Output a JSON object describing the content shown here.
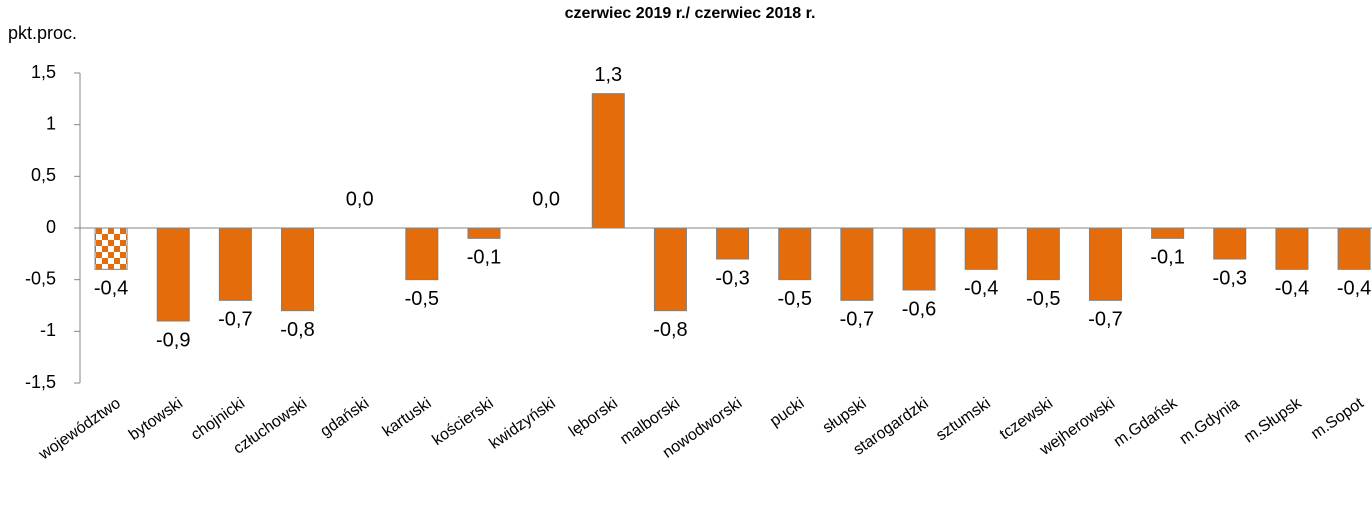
{
  "chart_data": {
    "type": "bar",
    "title": "czerwiec 2019 r./ czerwiec 2018 r.",
    "y_label": "pkt.proc.",
    "categories": [
      "województwo",
      "bytowski",
      "chojnicki",
      "człuchowski",
      "gdański",
      "kartuski",
      "kościerski",
      "kwidzyński",
      "lęborski",
      "malborski",
      "nowodworski",
      "pucki",
      "słupski",
      "starogardzki",
      "sztumski",
      "tczewski",
      "wejherowski",
      "m.Gdańsk",
      "m.Gdynia",
      "m.Słupsk",
      "m.Sopot"
    ],
    "values": [
      -0.4,
      -0.9,
      -0.7,
      -0.8,
      0.0,
      -0.5,
      -0.1,
      0.0,
      1.3,
      -0.8,
      -0.3,
      -0.5,
      -0.7,
      -0.6,
      -0.4,
      -0.5,
      -0.7,
      -0.1,
      -0.3,
      -0.4,
      -0.4
    ],
    "value_labels": [
      "-0,4",
      "-0,9",
      "-0,7",
      "-0,8",
      "0,0",
      "-0,5",
      "-0,1",
      "0,0",
      "1,3",
      "-0,8",
      "-0,3",
      "-0,5",
      "-0,7",
      "-0,6",
      "-0,4",
      "-0,5",
      "-0,7",
      "-0,1",
      "-0,3",
      "-0,4",
      "-0,4"
    ],
    "color": "#e46c0a",
    "highlight_index": 0,
    "ylim": [
      -1.5,
      1.5
    ],
    "yticks": [
      {
        "value": -1.5,
        "label": "-1,5"
      },
      -1,
      {
        "value": -0.5,
        "label": "-0,5"
      },
      0,
      {
        "value": 0.5,
        "label": "0,5"
      },
      1,
      {
        "value": 1.5,
        "label": "1,5"
      }
    ],
    "grid": false
  }
}
